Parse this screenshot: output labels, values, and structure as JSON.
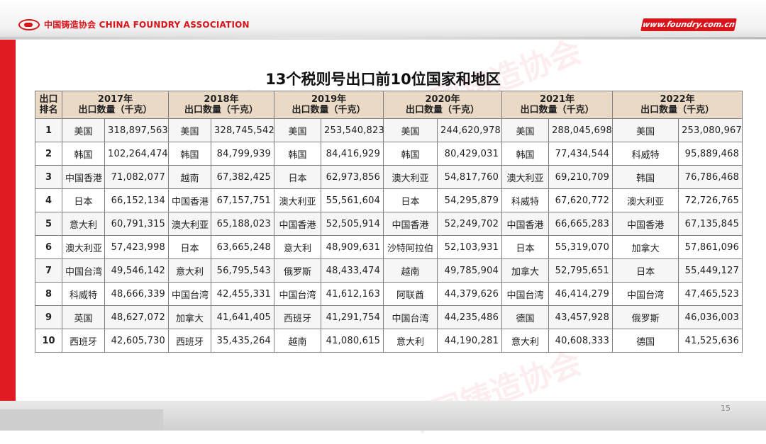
{
  "header": {
    "logo_text": "中国铸造协会 CHINA FOUNDRY ASSOCIATION",
    "url": "www.foundry.com.cn",
    "accent_color": "#d7141a"
  },
  "watermark_text": "中国铸造协会",
  "title": "13个税则号出口前10位国家和地区",
  "table": {
    "rank_header": [
      "出口",
      "排名"
    ],
    "years": [
      {
        "year": "2017年",
        "sub": "出口数量（千克）"
      },
      {
        "year": "2018年",
        "sub": "出口数量（千克）"
      },
      {
        "year": "2019年",
        "sub": "出口数量（千克）"
      },
      {
        "year": "2020年",
        "sub": "出口数量（千克）"
      },
      {
        "year": "2021年",
        "sub": "出口数量（千克）"
      },
      {
        "year": "2022年",
        "sub": "出口数量（千克）"
      }
    ],
    "rows": [
      {
        "rank": "1",
        "cells": [
          [
            "美国",
            "318,897,563"
          ],
          [
            "美国",
            "328,745,542"
          ],
          [
            "美国",
            "253,540,823"
          ],
          [
            "美国",
            "244,620,978"
          ],
          [
            "美国",
            "288,045,698"
          ],
          [
            "美国",
            "253,080,967"
          ]
        ]
      },
      {
        "rank": "2",
        "cells": [
          [
            "韩国",
            "102,264,474"
          ],
          [
            "韩国",
            "84,799,939"
          ],
          [
            "韩国",
            "84,416,929"
          ],
          [
            "韩国",
            "80,429,031"
          ],
          [
            "韩国",
            "77,434,544"
          ],
          [
            "科威特",
            "95,889,468"
          ]
        ]
      },
      {
        "rank": "3",
        "cells": [
          [
            "中国香港",
            "71,082,077"
          ],
          [
            "越南",
            "67,382,425"
          ],
          [
            "日本",
            "62,973,856"
          ],
          [
            "澳大利亚",
            "54,817,760"
          ],
          [
            "澳大利亚",
            "69,210,709"
          ],
          [
            "韩国",
            "76,786,468"
          ]
        ]
      },
      {
        "rank": "4",
        "cells": [
          [
            "日本",
            "66,152,134"
          ],
          [
            "中国香港",
            "67,157,751"
          ],
          [
            "澳大利亚",
            "55,561,604"
          ],
          [
            "日本",
            "54,295,879"
          ],
          [
            "科威特",
            "67,620,772"
          ],
          [
            "澳大利亚",
            "72,726,765"
          ]
        ]
      },
      {
        "rank": "5",
        "cells": [
          [
            "意大利",
            "60,791,315"
          ],
          [
            "澳大利亚",
            "65,188,023"
          ],
          [
            "中国香港",
            "52,505,914"
          ],
          [
            "中国香港",
            "52,249,702"
          ],
          [
            "中国香港",
            "66,665,283"
          ],
          [
            "中国香港",
            "67,135,845"
          ]
        ]
      },
      {
        "rank": "6",
        "cells": [
          [
            "澳大利亚",
            "57,423,998"
          ],
          [
            "日本",
            "63,665,248"
          ],
          [
            "意大利",
            "48,909,631"
          ],
          [
            "沙特阿拉伯",
            "52,103,931"
          ],
          [
            "日本",
            "55,319,070"
          ],
          [
            "加拿大",
            "57,861,096"
          ]
        ]
      },
      {
        "rank": "7",
        "cells": [
          [
            "中国台湾",
            "49,546,142"
          ],
          [
            "意大利",
            "56,795,543"
          ],
          [
            "俄罗斯",
            "48,433,474"
          ],
          [
            "越南",
            "49,785,904"
          ],
          [
            "加拿大",
            "52,795,651"
          ],
          [
            "日本",
            "55,449,127"
          ]
        ]
      },
      {
        "rank": "8",
        "cells": [
          [
            "科威特",
            "48,666,339"
          ],
          [
            "中国台湾",
            "42,455,331"
          ],
          [
            "中国台湾",
            "41,612,163"
          ],
          [
            "阿联酋",
            "44,379,626"
          ],
          [
            "中国台湾",
            "46,414,279"
          ],
          [
            "中国台湾",
            "47,465,523"
          ]
        ]
      },
      {
        "rank": "9",
        "cells": [
          [
            "英国",
            "48,627,072"
          ],
          [
            "加拿大",
            "41,641,405"
          ],
          [
            "西班牙",
            "41,291,754"
          ],
          [
            "中国台湾",
            "44,235,486"
          ],
          [
            "德国",
            "43,457,928"
          ],
          [
            "俄罗斯",
            "46,036,003"
          ]
        ]
      },
      {
        "rank": "10",
        "cells": [
          [
            "西班牙",
            "42,605,730"
          ],
          [
            "西班牙",
            "35,435,264"
          ],
          [
            "越南",
            "41,080,615"
          ],
          [
            "意大利",
            "44,190,281"
          ],
          [
            "意大利",
            "40,608,333"
          ],
          [
            "德国",
            "41,525,636"
          ]
        ]
      }
    ]
  },
  "footer": {
    "page_number": "15"
  }
}
